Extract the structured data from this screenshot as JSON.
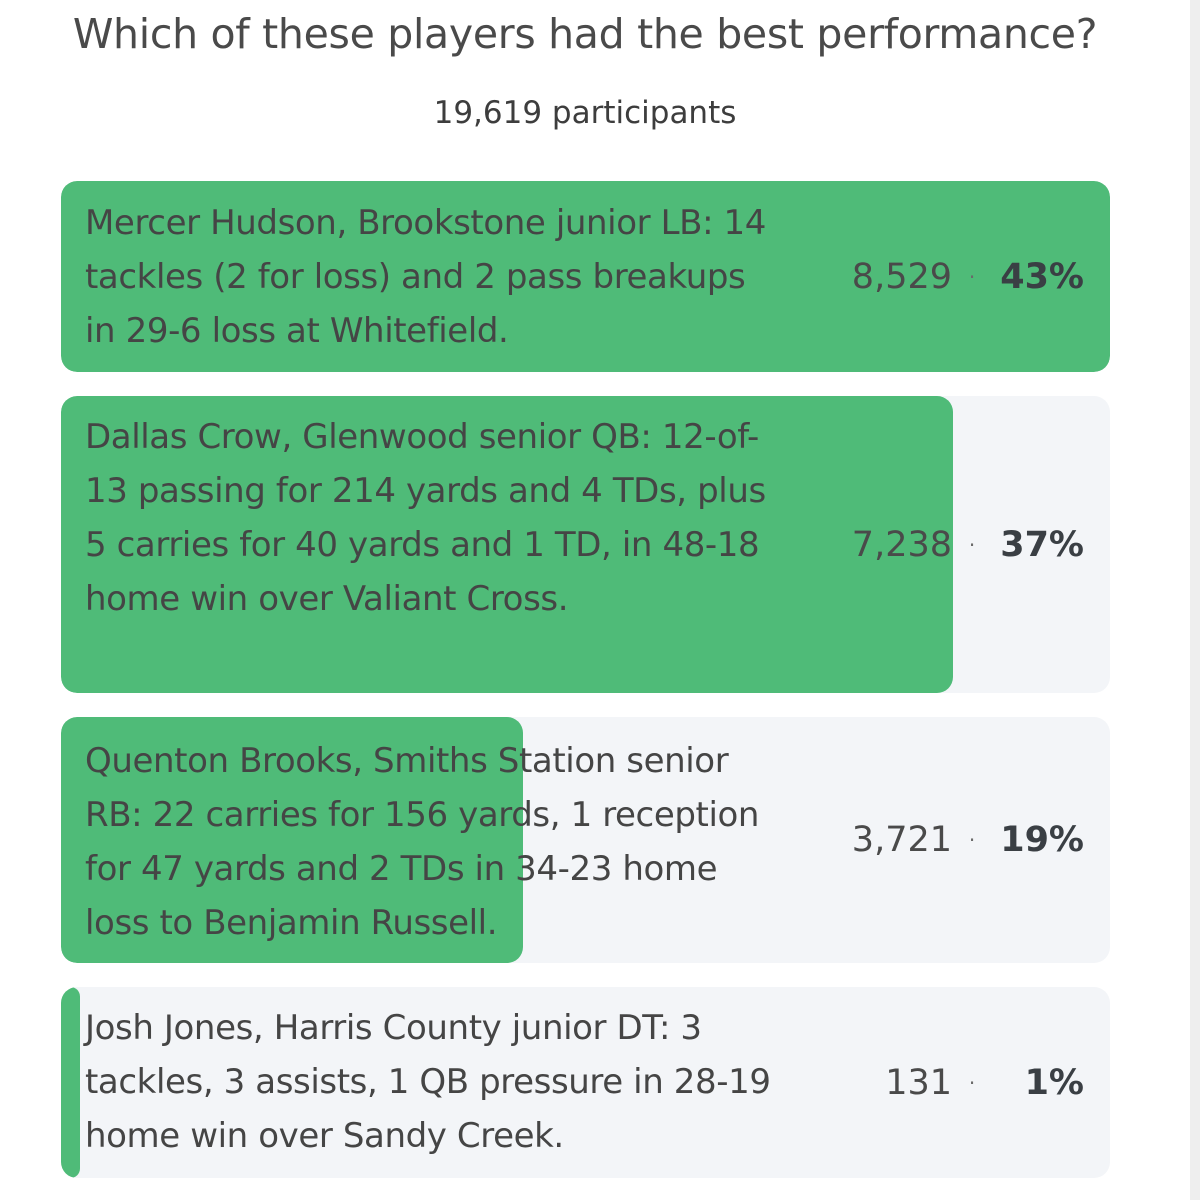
{
  "poll": {
    "question": "Which of these players had the best performance?",
    "participants": "19,619 participants"
  },
  "colors": {
    "bar": "#4fbb78",
    "option_background": "#f3f5f8"
  },
  "options": [
    {
      "text": "Mercer Hudson, Brookstone junior LB: 14 tackles (2 for loss) and 2 pass breakups in 29-6 loss at Whitefield.",
      "votes": "8,529",
      "separator": "·",
      "percent": "43%",
      "bar_fraction": 1.0
    },
    {
      "text": "Dallas Crow, Glenwood senior QB: 12-of-13 passing for 214 yards and 4 TDs, plus 5 carries for 40 yards and 1 TD, in 48-18 home win over Valiant Cross.",
      "votes": "7,238",
      "separator": "·",
      "percent": "37%",
      "bar_fraction": 0.85
    },
    {
      "text": "Quenton Brooks, Smiths Station senior RB: 22 carries for 156 yards, 1 reception for 47 yards and 2 TDs in 34-23 home loss to Benjamin Russell.",
      "votes": "3,721",
      "separator": "·",
      "percent": "19%",
      "bar_fraction": 0.44
    },
    {
      "text": "Josh Jones, Harris County junior DT: 3 tackles, 3 assists, 1 QB pressure in 28-19 home win over Sandy Creek.",
      "votes": "131",
      "separator": "·",
      "percent": "1%",
      "bar_fraction": 0.018
    }
  ]
}
